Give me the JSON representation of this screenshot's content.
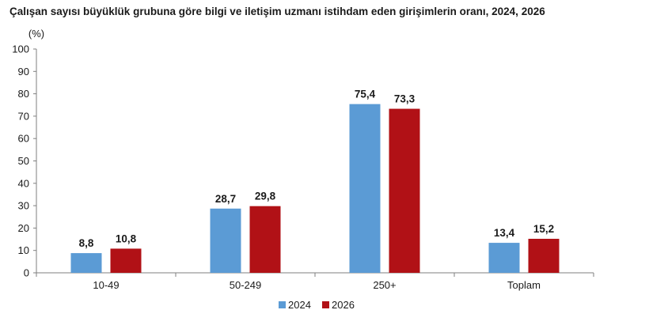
{
  "chart_data": {
    "type": "bar",
    "title": "Çalışan sayısı büyüklük grubuna göre bilgi ve iletişim uzmanı istihdam eden girişimlerin oranı, 2024, 2026",
    "ylabel": "(%)",
    "xlabel": "",
    "categories": [
      "10-49",
      "50-249",
      "250+",
      "Toplam"
    ],
    "series": [
      {
        "name": "2024",
        "color": "#5b9bd5",
        "values": [
          8.8,
          28.7,
          75.4,
          13.4
        ],
        "labels": [
          "8,8",
          "28,7",
          "75,4",
          "13,4"
        ]
      },
      {
        "name": "2026",
        "color": "#b11116",
        "values": [
          10.8,
          29.8,
          73.3,
          15.2
        ],
        "labels": [
          "10,8",
          "29,8",
          "73,3",
          "15,2"
        ]
      }
    ],
    "ylim": [
      0,
      100
    ],
    "yticks": [
      0,
      10,
      20,
      30,
      40,
      50,
      60,
      70,
      80,
      90,
      100
    ],
    "grid": false,
    "legend_position": "bottom"
  }
}
